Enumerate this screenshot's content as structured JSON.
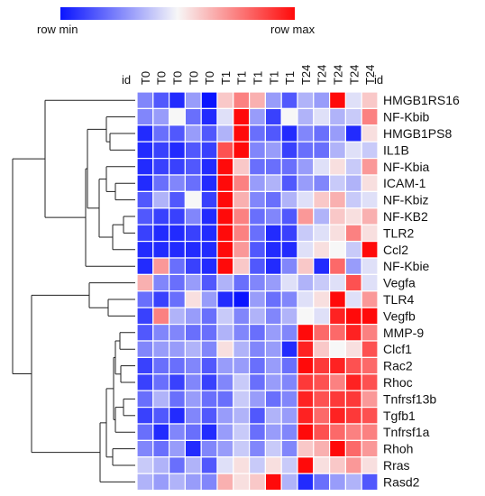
{
  "legend": {
    "min_label": "row min",
    "max_label": "row max",
    "colors": [
      "#0a14ff",
      "#f7f7f7",
      "#ff0a0a"
    ]
  },
  "id_label": "id",
  "chart_data": {
    "type": "heatmap",
    "value_scale": "per-row min (blue) to max (red), values 0-1",
    "columns": [
      "T0",
      "T0",
      "T0",
      "T0",
      "T0",
      "T1",
      "T1",
      "T1",
      "T1",
      "T1",
      "T24",
      "T24",
      "T24",
      "T24",
      "T24"
    ],
    "rows": [
      "HMGB1RS16",
      "NF-Kbib",
      "HMGB1PS8",
      "IL1B",
      "NF-Kbia",
      "ICAM-1",
      "NF-Kbiz",
      "NF-KB2",
      "TLR2",
      "Ccl2",
      "NF-Kbie",
      "Vegfa",
      "TLR4",
      "Vegfb",
      "MMP-9",
      "Clcf1",
      "Rac2",
      "Rhoc",
      "Tnfrsf13b",
      "Tgfb1",
      "Tnfrsf1a",
      "Rhoh",
      "Rras",
      "Rasd2"
    ],
    "values": [
      [
        0.25,
        0.15,
        0.05,
        0.3,
        0.0,
        0.6,
        0.75,
        0.65,
        0.3,
        0.15,
        0.35,
        0.3,
        1.0,
        0.45,
        0.6
      ],
      [
        0.25,
        0.3,
        0.5,
        0.2,
        0.05,
        0.45,
        1.0,
        0.3,
        0.1,
        0.5,
        0.35,
        0.45,
        0.35,
        0.4,
        0.75
      ],
      [
        0.05,
        0.2,
        0.15,
        0.3,
        0.15,
        0.35,
        1.0,
        0.2,
        0.15,
        0.05,
        0.25,
        0.2,
        0.3,
        0.05,
        0.55
      ],
      [
        0.05,
        0.1,
        0.05,
        0.15,
        0.1,
        0.85,
        1.0,
        0.25,
        0.3,
        0.1,
        0.2,
        0.2,
        0.35,
        0.45,
        0.4
      ],
      [
        0.05,
        0.1,
        0.1,
        0.15,
        0.05,
        1.0,
        0.6,
        0.2,
        0.2,
        0.2,
        0.3,
        0.45,
        0.55,
        0.4,
        0.7
      ],
      [
        0.05,
        0.2,
        0.25,
        0.2,
        0.05,
        1.0,
        0.75,
        0.3,
        0.35,
        0.15,
        0.3,
        0.25,
        0.4,
        0.35,
        0.55
      ],
      [
        0.15,
        0.35,
        0.15,
        0.5,
        0.1,
        1.0,
        0.65,
        0.25,
        0.2,
        0.35,
        0.45,
        0.6,
        0.65,
        0.4,
        0.45
      ],
      [
        0.15,
        0.1,
        0.1,
        0.25,
        0.05,
        1.0,
        0.75,
        0.2,
        0.25,
        0.15,
        0.7,
        0.35,
        0.6,
        0.55,
        0.65
      ],
      [
        0.1,
        0.05,
        0.05,
        0.1,
        0.05,
        1.0,
        0.75,
        0.2,
        0.05,
        0.1,
        0.4,
        0.45,
        0.55,
        0.75,
        0.55
      ],
      [
        0.05,
        0.05,
        0.05,
        0.05,
        0.05,
        1.0,
        0.7,
        0.15,
        0.05,
        0.05,
        0.45,
        0.55,
        0.5,
        0.4,
        1.0
      ],
      [
        0.05,
        0.7,
        0.2,
        0.1,
        0.05,
        1.0,
        0.6,
        0.15,
        0.05,
        0.25,
        0.6,
        0.05,
        0.8,
        0.3,
        0.45
      ],
      [
        0.65,
        0.25,
        0.2,
        0.3,
        0.15,
        0.35,
        0.2,
        0.25,
        0.3,
        0.45,
        0.35,
        0.4,
        0.45,
        0.85,
        0.45
      ],
      [
        0.2,
        0.1,
        0.2,
        0.55,
        0.3,
        0.05,
        0.0,
        0.3,
        0.2,
        0.25,
        0.45,
        0.55,
        1.0,
        0.45,
        0.7
      ],
      [
        0.1,
        0.75,
        0.35,
        0.3,
        0.2,
        0.4,
        0.25,
        0.35,
        0.25,
        0.35,
        0.5,
        0.45,
        0.95,
        1.0,
        1.0
      ],
      [
        0.15,
        0.25,
        0.25,
        0.2,
        0.2,
        0.35,
        0.25,
        0.2,
        0.3,
        0.25,
        1.0,
        0.8,
        0.8,
        0.95,
        0.75
      ],
      [
        0.25,
        0.3,
        0.3,
        0.35,
        0.25,
        0.55,
        0.35,
        0.25,
        0.3,
        0.05,
        0.95,
        0.6,
        0.5,
        0.55,
        0.85
      ],
      [
        0.1,
        0.2,
        0.2,
        0.25,
        0.15,
        0.3,
        0.3,
        0.2,
        0.3,
        0.2,
        1.0,
        0.9,
        0.95,
        0.85,
        0.8
      ],
      [
        0.1,
        0.2,
        0.1,
        0.25,
        0.1,
        0.25,
        0.4,
        0.2,
        0.3,
        0.25,
        0.9,
        0.85,
        0.75,
        0.95,
        0.85
      ],
      [
        0.2,
        0.35,
        0.2,
        0.3,
        0.2,
        0.2,
        0.4,
        0.3,
        0.2,
        0.25,
        0.95,
        0.85,
        0.9,
        0.9,
        0.7
      ],
      [
        0.1,
        0.15,
        0.05,
        0.25,
        0.15,
        0.3,
        0.35,
        0.15,
        0.35,
        0.3,
        0.95,
        0.8,
        0.95,
        0.9,
        0.85
      ],
      [
        0.2,
        0.05,
        0.25,
        0.2,
        0.05,
        0.3,
        0.4,
        0.2,
        0.3,
        0.25,
        1.0,
        0.85,
        0.8,
        0.75,
        0.75
      ],
      [
        0.25,
        0.2,
        0.3,
        0.05,
        0.25,
        0.3,
        0.4,
        0.25,
        0.4,
        0.25,
        0.6,
        0.65,
        1.0,
        0.8,
        0.7
      ],
      [
        0.4,
        0.35,
        0.2,
        0.35,
        0.15,
        0.45,
        0.55,
        0.4,
        0.55,
        0.4,
        1.0,
        0.55,
        0.6,
        0.7,
        0.55
      ],
      [
        0.35,
        0.3,
        0.35,
        0.3,
        0.25,
        0.65,
        0.55,
        0.6,
        1.0,
        0.35,
        0.05,
        0.2,
        0.3,
        0.35,
        0.15
      ]
    ]
  }
}
